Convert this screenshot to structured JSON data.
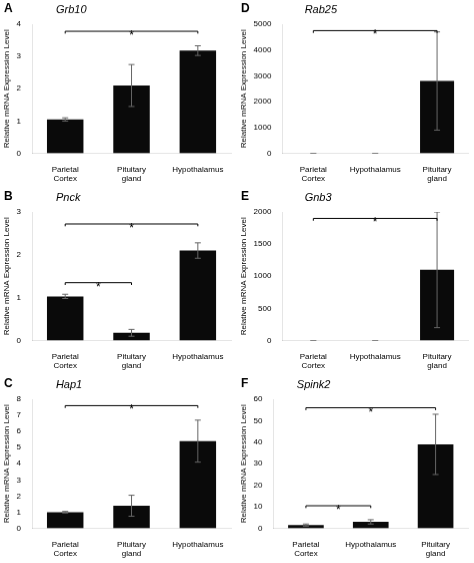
{
  "chart_data": [
    {
      "type": "bar",
      "title": "A",
      "subtitle": "Grb10",
      "categories": [
        "Parietal\nCortex",
        "Pituitary\ngland",
        "Hypothalamus"
      ],
      "values": [
        1.05,
        2.1,
        3.18
      ],
      "errors": [
        0.05,
        0.65,
        0.15
      ],
      "color": "#0a0a0a",
      "ylabel": "Relative mRNA Expression Level",
      "ylim": [
        0,
        4
      ],
      "yticks": [
        0,
        1,
        2,
        3,
        4
      ],
      "grid": false,
      "annotations": [
        {
          "text": "*",
          "from": "Parietal\nCortex",
          "to": "Hypothalamus",
          "y": 3.78
        }
      ]
    },
    {
      "type": "bar",
      "title": "B",
      "subtitle": "Pnck",
      "categories": [
        "Parietal\nCortex",
        "Pituitary\ngland",
        "Hypothalamus"
      ],
      "values": [
        1.03,
        0.18,
        2.1
      ],
      "errors": [
        0.05,
        0.08,
        0.18
      ],
      "color": "#0a0a0a",
      "ylabel": "Relative mRNA Expression Level",
      "ylim": [
        0,
        3
      ],
      "yticks": [
        0,
        1,
        2,
        3
      ],
      "grid": false,
      "annotations": [
        {
          "text": "*",
          "from": "Parietal\nCortex",
          "to": "Pituitary\ngland",
          "y": 1.35
        },
        {
          "text": "*",
          "from": "Parietal\nCortex",
          "to": "Hypothalamus",
          "y": 2.72
        }
      ]
    },
    {
      "type": "bar",
      "title": "C",
      "subtitle": "Hap1",
      "categories": [
        "Parietal\nCortex",
        "Pituitary\ngland",
        "Hypothalamus"
      ],
      "values": [
        1.0,
        1.4,
        5.4
      ],
      "errors": [
        0.05,
        0.65,
        1.3
      ],
      "color": "#0a0a0a",
      "ylabel": "Relative mRNA Expression Level",
      "ylim": [
        0,
        8
      ],
      "yticks": [
        0,
        1,
        2,
        3,
        4,
        5,
        6,
        7,
        8
      ],
      "grid": false,
      "annotations": [
        {
          "text": "*",
          "from": "Parietal\nCortex",
          "to": "Hypothalamus",
          "y": 7.6
        }
      ]
    },
    {
      "type": "bar",
      "title": "D",
      "subtitle": "Rab25",
      "categories": [
        "Parietal\nCortex",
        "Hypothalamus",
        "Pituitary\ngland"
      ],
      "values": [
        0,
        0,
        2800
      ],
      "errors": [
        0,
        0,
        1900
      ],
      "color": "#0a0a0a",
      "ylabel": "Relative mRNA Expression Level",
      "ylim": [
        0,
        5000
      ],
      "yticks": [
        0,
        1000,
        2000,
        3000,
        4000,
        5000
      ],
      "grid": false,
      "annotations": [
        {
          "text": "*",
          "from": "Parietal\nCortex",
          "to": "Pituitary\ngland",
          "y": 4750
        }
      ]
    },
    {
      "type": "bar",
      "title": "E",
      "subtitle": "Gnb3",
      "categories": [
        "Parietal\nCortex",
        "Hypothalamus",
        "Pituitary\ngland"
      ],
      "values": [
        0,
        0,
        1100
      ],
      "errors": [
        0,
        0,
        900
      ],
      "color": "#0a0a0a",
      "ylabel": "Relative mRNA Expression Level",
      "ylim": [
        0,
        2000
      ],
      "yticks": [
        0,
        500,
        1000,
        1500,
        2000
      ],
      "grid": false,
      "annotations": [
        {
          "text": "*",
          "from": "Parietal\nCortex",
          "to": "Pituitary\ngland",
          "y": 1900
        }
      ]
    },
    {
      "type": "bar",
      "title": "F",
      "subtitle": "Spink2",
      "categories": [
        "Parietal\nCortex",
        "Hypothalamus",
        "Pituitary\ngland"
      ],
      "values": [
        1.5,
        3.0,
        39.0
      ],
      "errors": [
        0.5,
        1.0,
        14.0
      ],
      "color": "#0a0a0a",
      "ylabel": "Relative mRNA Expression Level",
      "ylim": [
        0,
        60
      ],
      "yticks": [
        0,
        10,
        20,
        30,
        40,
        50,
        60
      ],
      "grid": false,
      "annotations": [
        {
          "text": "*",
          "from": "Parietal\nCortex",
          "to": "Hypothalamus",
          "y": 10.5
        },
        {
          "text": "*",
          "from": "Parietal\nCortex",
          "to": "Pituitary\ngland",
          "y": 56
        }
      ]
    }
  ]
}
